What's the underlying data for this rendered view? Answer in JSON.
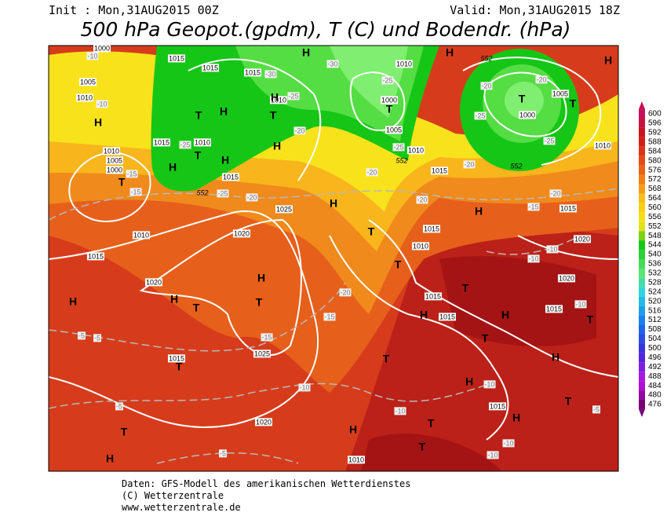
{
  "header": {
    "init": "Init : Mon,31AUG2015 00Z",
    "valid": "Valid: Mon,31AUG2015 18Z",
    "title": "500 hPa Geopot.(gpdm), T (C) und Bodendr. (hPa)"
  },
  "colorbar": {
    "ticks": [
      600,
      596,
      592,
      588,
      584,
      580,
      576,
      572,
      568,
      564,
      560,
      556,
      552,
      548,
      544,
      540,
      536,
      532,
      528,
      524,
      520,
      516,
      512,
      508,
      504,
      500,
      496,
      492,
      488,
      484,
      480,
      476
    ]
  },
  "map": {
    "pressure_labels": [
      "1000",
      "1015",
      "1015",
      "1010",
      "1005",
      "1010",
      "1015",
      "1010",
      "1000",
      "1005",
      "1000",
      "1005",
      "1010",
      "1010",
      "1015",
      "1010",
      "1010",
      "1005",
      "1000",
      "1015",
      "1015",
      "1025",
      "1015",
      "1015",
      "1010",
      "1020",
      "1015",
      "1010",
      "1020",
      "1020",
      "1020",
      "1015",
      "1015",
      "1015",
      "1025",
      "1015",
      "1020",
      "1015",
      "1010"
    ],
    "temperature_labels": [
      "-10",
      "-10",
      "-30",
      "-25",
      "-30",
      "-25",
      "-20",
      "-25",
      "-20",
      "-25",
      "-20",
      "-25",
      "-25",
      "-15",
      "-15",
      "-25",
      "-20",
      "-20",
      "-20",
      "-20",
      "-20",
      "-15",
      "-10",
      "-10",
      "-10",
      "-20",
      "-15",
      "-15",
      "-5",
      "-5",
      "-10",
      "-10",
      "-10",
      "-5",
      "-5",
      "-5",
      "-10",
      "-10"
    ],
    "centers": [
      "H",
      "T",
      "H",
      "H",
      "T",
      "T",
      "H",
      "H",
      "T",
      "H",
      "H",
      "T",
      "H",
      "T",
      "T",
      "T",
      "H",
      "H",
      "H",
      "T",
      "H",
      "T",
      "H",
      "T",
      "T",
      "H",
      "H",
      "T",
      "H",
      "T",
      "T",
      "H",
      "T",
      "H",
      "T",
      "H",
      "T",
      "T",
      "H",
      "T",
      "H"
    ],
    "geopotential_labels": [
      "552",
      "552",
      "552",
      "552"
    ]
  },
  "footer": {
    "lines": [
      "Daten: GFS-Modell des amerikanischen Wetterdienstes",
      "(C) Wetterzentrale",
      "www.wetterzentrale.de"
    ]
  }
}
